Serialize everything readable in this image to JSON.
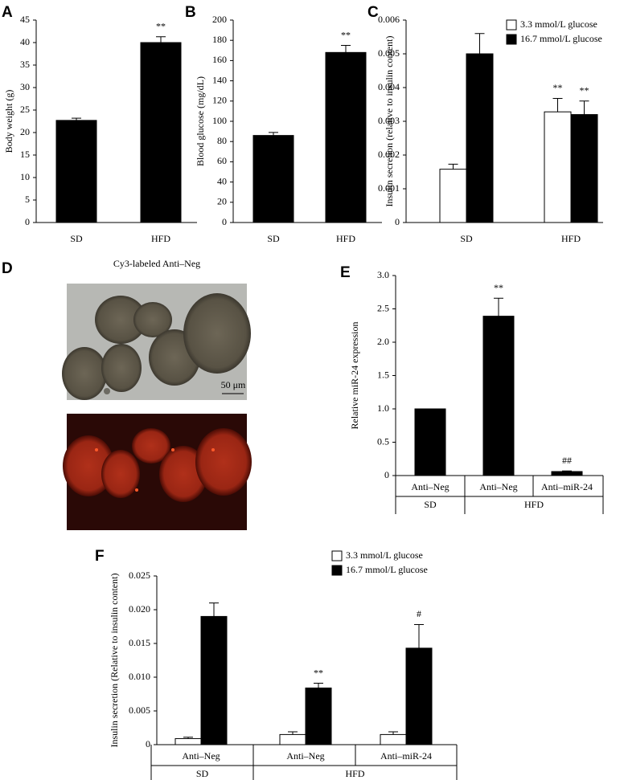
{
  "chart_data": [
    {
      "type": "bar",
      "panel": "A",
      "y_label": "Body weight (g)",
      "categories": [
        "SD",
        "HFD"
      ],
      "values": [
        22.7,
        40.0
      ],
      "errors": [
        0.5,
        1.3
      ],
      "annotations": [
        null,
        "**"
      ],
      "color": "#000000",
      "ylim": [
        0,
        45
      ],
      "yticks": [
        0,
        5,
        10,
        15,
        20,
        25,
        30,
        35,
        40,
        45
      ]
    },
    {
      "type": "bar",
      "panel": "B",
      "y_label": "Blood glucose (mg/dL)",
      "categories": [
        "SD",
        "HFD"
      ],
      "values": [
        86,
        168
      ],
      "errors": [
        3,
        7
      ],
      "annotations": [
        null,
        "**"
      ],
      "color": "#000000",
      "ylim": [
        0,
        200
      ],
      "yticks": [
        0,
        20,
        40,
        60,
        80,
        100,
        120,
        140,
        160,
        180,
        200
      ]
    },
    {
      "type": "bar",
      "panel": "C",
      "y_label": "Insulin secretion (relative to insulin content)",
      "categories": [
        "SD",
        "HFD"
      ],
      "series": [
        {
          "name": "3.3   mmol/L glucose",
          "color": "#ffffff",
          "values": [
            0.00158,
            0.00328
          ],
          "errors": [
            0.00015,
            0.0004
          ],
          "annotations": [
            null,
            "**"
          ]
        },
        {
          "name": "16.7 mmol/L glucose",
          "color": "#000000",
          "values": [
            0.005,
            0.0032
          ],
          "errors": [
            0.0006,
            0.0004
          ],
          "annotations": [
            null,
            "**"
          ]
        }
      ],
      "ylim": [
        0,
        0.006
      ],
      "yticks": [
        0,
        0.001,
        0.002,
        0.003,
        0.004,
        0.005,
        0.006
      ]
    },
    {
      "type": "bar",
      "panel": "E",
      "y_label": "Relative miR-24 expression",
      "groups": [
        {
          "label": "SD",
          "categories": [
            "Anti–Neg"
          ]
        },
        {
          "label": "HFD",
          "categories": [
            "Anti–Neg",
            "Anti–miR-24"
          ]
        }
      ],
      "values": [
        1.0,
        2.39,
        0.06
      ],
      "errors": [
        0,
        0.27,
        0.01
      ],
      "annotations": [
        null,
        "**",
        "##"
      ],
      "color": "#000000",
      "ylim": [
        0,
        3
      ],
      "yticks": [
        0,
        0.5,
        {
          "value": 1,
          "label": "1.0"
        },
        1.5,
        {
          "value": 2,
          "label": "2.0"
        },
        2.5,
        {
          "value": 3,
          "label": "3.0"
        }
      ]
    },
    {
      "type": "bar",
      "panel": "F",
      "y_label": "Insulin secretion (Relative to insulin content)",
      "groups": [
        {
          "label": "SD",
          "categories": [
            "Anti–Neg"
          ]
        },
        {
          "label": "HFD",
          "categories": [
            "Anti–Neg",
            "Anti–miR-24"
          ]
        }
      ],
      "series": [
        {
          "name": "3.3   mmol/L glucose",
          "color": "#ffffff",
          "values": [
            0.0009,
            0.0015,
            0.0015
          ],
          "errors": [
            0.0002,
            0.0004,
            0.0004
          ],
          "annotations": [
            null,
            null,
            null
          ]
        },
        {
          "name": "16.7 mmol/L glucose",
          "color": "#000000",
          "values": [
            0.019,
            0.0084,
            0.0143
          ],
          "errors": [
            0.002,
            0.0007,
            0.0035
          ],
          "annotations": [
            null,
            "**",
            "#"
          ]
        }
      ],
      "ylim": [
        0,
        0.025
      ],
      "yticks": [
        0,
        0.005,
        {
          "value": 0.01,
          "label": "0.010"
        },
        0.015,
        {
          "value": 0.02,
          "label": "0.020"
        },
        0.025
      ]
    }
  ],
  "images": {
    "panel": "D",
    "title": "Cy3-labeled Anti–Neg",
    "scale_label": "50 μm"
  }
}
